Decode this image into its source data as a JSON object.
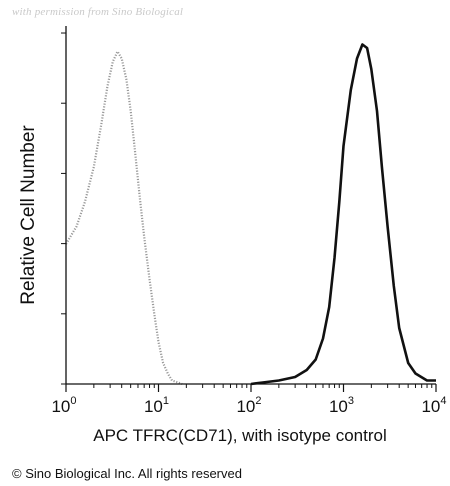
{
  "watermark": "with permission from Sino Biological",
  "copyright": "© Sino Biological Inc. All rights reserved",
  "chart_data": {
    "type": "line",
    "title": "",
    "xlabel": "APC TFRC(CD71), with isotype control",
    "ylabel": "Relative Cell Number",
    "x_scale": "log",
    "xlim": [
      1,
      10000
    ],
    "ylim": [
      0,
      100
    ],
    "x_ticks": [
      {
        "base": "10",
        "exp": "0"
      },
      {
        "base": "10",
        "exp": "1"
      },
      {
        "base": "10",
        "exp": "2"
      },
      {
        "base": "10",
        "exp": "3"
      },
      {
        "base": "10",
        "exp": "4"
      }
    ],
    "grid": false,
    "legend": "none",
    "series": [
      {
        "role": "isotype control",
        "color": "#9a9a9a",
        "style": "dotted",
        "x": [
          1.0,
          1.3,
          1.6,
          2.0,
          2.4,
          2.8,
          3.2,
          3.6,
          4.0,
          4.5,
          5.0,
          5.6,
          6.3,
          7.0,
          8.0,
          9.0,
          10.0,
          11.2,
          12.6,
          14.0,
          16.0,
          18.0
        ],
        "y": [
          40,
          45,
          52,
          62,
          74,
          85,
          92,
          95,
          93,
          87,
          78,
          66,
          53,
          42,
          30,
          20,
          12,
          6,
          3,
          1,
          0.5,
          0
        ]
      },
      {
        "role": "TFRC(CD71) stained",
        "color": "#111111",
        "style": "solid",
        "x": [
          100,
          200,
          300,
          400,
          500,
          600,
          700,
          800,
          900,
          1000,
          1200,
          1400,
          1600,
          1800,
          2000,
          2300,
          2600,
          3000,
          3500,
          4000,
          5000,
          6000,
          8000,
          10000
        ],
        "y": [
          0,
          1,
          2,
          4,
          7,
          13,
          22,
          36,
          52,
          68,
          84,
          93,
          97,
          96,
          90,
          78,
          62,
          45,
          28,
          16,
          6,
          3,
          1,
          1
        ]
      }
    ]
  }
}
